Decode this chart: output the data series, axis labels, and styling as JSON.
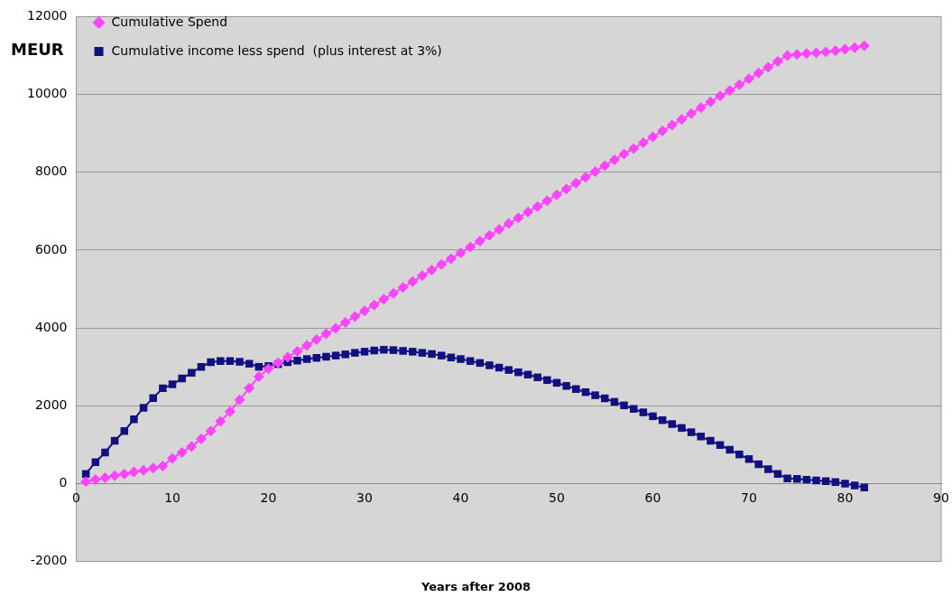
{
  "chart_data": {
    "type": "line",
    "xlabel": "Years after 2008",
    "ylabel": "MEUR",
    "x": [
      1,
      2,
      3,
      4,
      5,
      6,
      7,
      8,
      9,
      10,
      11,
      12,
      13,
      14,
      15,
      16,
      17,
      18,
      19,
      20,
      21,
      22,
      23,
      24,
      25,
      26,
      27,
      28,
      29,
      30,
      31,
      32,
      33,
      34,
      35,
      36,
      37,
      38,
      39,
      40,
      41,
      42,
      43,
      44,
      45,
      46,
      47,
      48,
      49,
      50,
      51,
      52,
      53,
      54,
      55,
      56,
      57,
      58,
      59,
      60,
      61,
      62,
      63,
      64,
      65,
      66,
      67,
      68,
      69,
      70,
      71,
      72,
      73,
      74,
      75,
      76,
      77,
      78,
      79,
      80,
      81,
      82
    ],
    "series": [
      {
        "name": "Cumulative Spend",
        "color": "#ff44ff",
        "marker": "diamond",
        "values": [
          50,
          100,
          150,
          200,
          250,
          300,
          340,
          400,
          450,
          650,
          800,
          950,
          1150,
          1350,
          1600,
          1850,
          2150,
          2450,
          2750,
          2950,
          3100,
          3250,
          3400,
          3550,
          3700,
          3850,
          3990,
          4140,
          4290,
          4440,
          4590,
          4740,
          4890,
          5040,
          5190,
          5340,
          5490,
          5630,
          5780,
          5930,
          6080,
          6230,
          6380,
          6530,
          6680,
          6830,
          6980,
          7120,
          7270,
          7420,
          7570,
          7720,
          7870,
          8020,
          8170,
          8320,
          8470,
          8610,
          8760,
          8910,
          9060,
          9210,
          9360,
          9510,
          9660,
          9810,
          9960,
          10100,
          10250,
          10400,
          10550,
          10700,
          10850,
          11000,
          11030,
          11050,
          11070,
          11090,
          11120,
          11160,
          11200,
          11250
        ]
      },
      {
        "name": "Cumulative income less spend  (plus interest at 3%)",
        "color": "#10107f",
        "marker": "square",
        "values": [
          250,
          550,
          800,
          1100,
          1350,
          1650,
          1950,
          2200,
          2450,
          2550,
          2700,
          2850,
          3000,
          3120,
          3150,
          3150,
          3130,
          3080,
          3000,
          3020,
          3070,
          3120,
          3160,
          3200,
          3230,
          3260,
          3290,
          3320,
          3360,
          3390,
          3420,
          3440,
          3430,
          3410,
          3390,
          3360,
          3330,
          3290,
          3240,
          3200,
          3150,
          3100,
          3040,
          2980,
          2920,
          2860,
          2800,
          2730,
          2660,
          2590,
          2510,
          2430,
          2350,
          2270,
          2190,
          2100,
          2010,
          1920,
          1830,
          1730,
          1630,
          1530,
          1430,
          1320,
          1210,
          1100,
          990,
          870,
          750,
          630,
          500,
          370,
          250,
          130,
          120,
          100,
          80,
          60,
          40,
          0,
          -50,
          -100
        ]
      }
    ],
    "xlim": [
      0,
      90
    ],
    "xticks": [
      0,
      10,
      20,
      30,
      40,
      50,
      60,
      70,
      80,
      90
    ],
    "ylim": [
      -2000,
      12000
    ],
    "yticks": [
      -2000,
      0,
      2000,
      4000,
      6000,
      8000,
      10000,
      12000
    ],
    "grid": "y",
    "legend": "top left",
    "line_style": "solid"
  }
}
